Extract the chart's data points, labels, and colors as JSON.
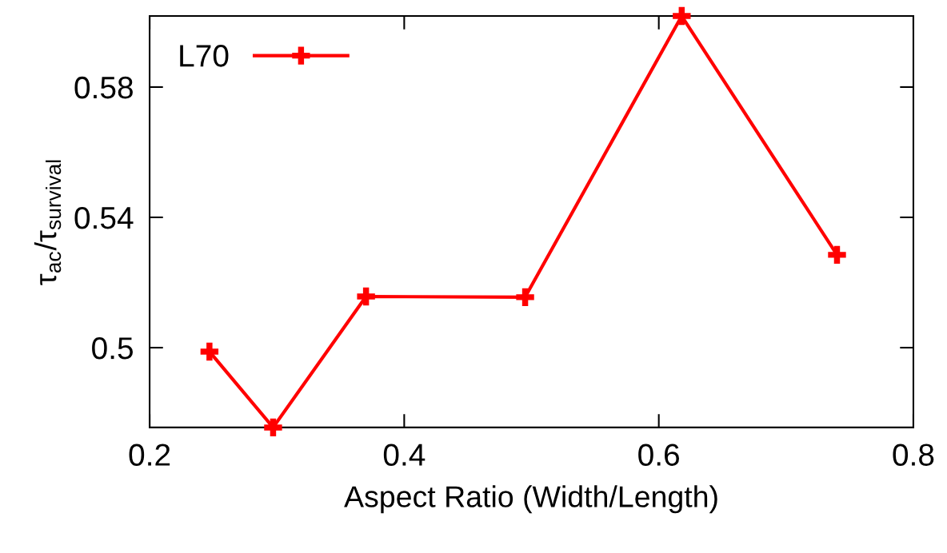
{
  "chart_data": {
    "type": "line",
    "xlabel": "Aspect Ratio (Width/Length)",
    "ylabel": "τ$_{ac}$/τ$_{survival}$",
    "x": [
      0.247,
      0.297,
      0.37,
      0.495,
      0.618,
      0.74
    ],
    "series": [
      {
        "name": "L70",
        "color": "#ff0000",
        "values": [
          0.4988,
          0.4755,
          0.5157,
          0.5155,
          0.6018,
          0.5285
        ]
      }
    ],
    "xlim": [
      0.2,
      0.8
    ],
    "xticks": [
      0.2,
      0.4,
      0.6,
      0.8
    ],
    "ylim": [
      0.4755,
      0.6018
    ],
    "yticks": [
      0.5,
      0.54,
      0.58
    ],
    "marker": "cross",
    "line_style": "solid",
    "grid": false,
    "legend": "top left"
  }
}
